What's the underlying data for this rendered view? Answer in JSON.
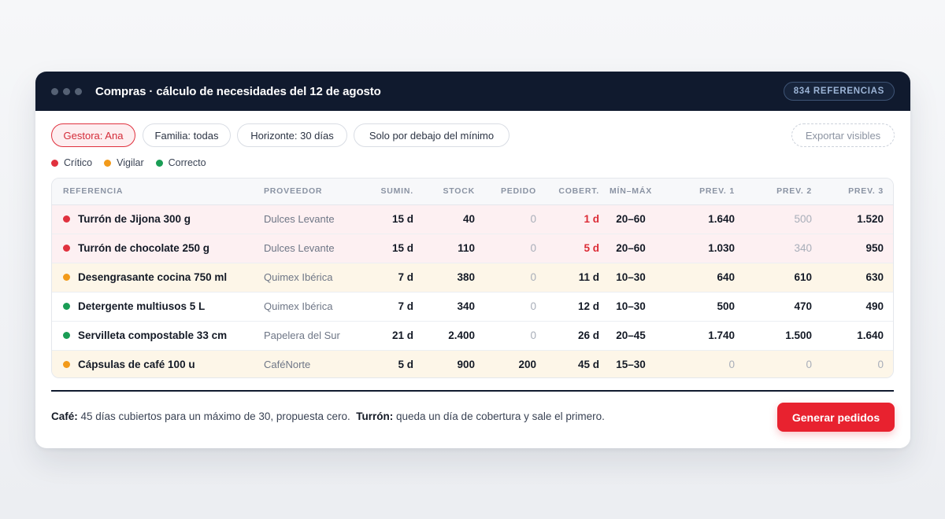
{
  "window": {
    "title": "Compras · cálculo de necesidades del 12 de agosto",
    "count_badge": "834 REFERENCIAS"
  },
  "filters": [
    {
      "label": "Gestora: Ana",
      "active": true
    },
    {
      "label": "Familia: todas",
      "active": false
    },
    {
      "label": "Horizonte: 30 días",
      "active": false
    },
    {
      "label": "Solo por debajo del mínimo",
      "active": false
    }
  ],
  "export_label": "Exportar visibles",
  "legend": [
    {
      "label": "Crítico",
      "color": "#e0313e"
    },
    {
      "label": "Vigilar",
      "color": "#f29a1a"
    },
    {
      "label": "Correcto",
      "color": "#1a9d55"
    }
  ],
  "table": {
    "headers": [
      "REFERENCIA",
      "PROVEEDOR",
      "SUMIN.",
      "STOCK",
      "PEDIDO",
      "COBERT.",
      "MÍN–MÁX",
      "PREV. 1",
      "PREV. 2",
      "PREV. 3"
    ],
    "rows": [
      {
        "status": "crit",
        "ref": "Turrón de Jijona 300 g",
        "supplier": "Dulces Levante",
        "sumin": "15 d",
        "stock": "40",
        "pedido": "0",
        "cobert": "1 d",
        "minmax": "20–60",
        "prev1": "1.640",
        "prev2": "500",
        "prev3": "1.520"
      },
      {
        "status": "crit",
        "ref": "Turrón de chocolate 250 g",
        "supplier": "Dulces Levante",
        "sumin": "15 d",
        "stock": "110",
        "pedido": "0",
        "cobert": "5 d",
        "minmax": "20–60",
        "prev1": "1.030",
        "prev2": "340",
        "prev3": "950"
      },
      {
        "status": "warn",
        "ref": "Desengrasante cocina 750 ml",
        "supplier": "Quimex Ibérica",
        "sumin": "7 d",
        "stock": "380",
        "pedido": "0",
        "cobert": "11 d",
        "minmax": "10–30",
        "prev1": "640",
        "prev2": "610",
        "prev3": "630"
      },
      {
        "status": "ok",
        "ref": "Detergente multiusos 5 L",
        "supplier": "Quimex Ibérica",
        "sumin": "7 d",
        "stock": "340",
        "pedido": "0",
        "cobert": "12 d",
        "minmax": "10–30",
        "prev1": "500",
        "prev2": "470",
        "prev3": "490"
      },
      {
        "status": "ok",
        "ref": "Servilleta compostable 33 cm",
        "supplier": "Papelera del Sur",
        "sumin": "21 d",
        "stock": "2.400",
        "pedido": "0",
        "cobert": "26 d",
        "minmax": "20–45",
        "prev1": "1.740",
        "prev2": "1.500",
        "prev3": "1.640"
      },
      {
        "status": "warn",
        "ref": "Cápsulas de café 100 u",
        "supplier": "CaféNorte",
        "sumin": "5 d",
        "stock": "900",
        "pedido": "200",
        "cobert": "45 d",
        "minmax": "15–30",
        "prev1": "0",
        "prev2": "0",
        "prev3": "0"
      }
    ]
  },
  "footer": {
    "cafe_label": "Café:",
    "cafe_text": " 45 días cubiertos para un máximo de 30, propuesta cero.",
    "turron_label": "Turrón:",
    "turron_text": " queda un día de cobertura y sale el primero."
  },
  "generate_button": "Generar pedidos",
  "colors": {
    "critical": "#e0313e",
    "watch": "#f29a1a",
    "ok": "#1a9d55",
    "titlebar": "#101a2e",
    "primary_button": "#e8222f"
  }
}
